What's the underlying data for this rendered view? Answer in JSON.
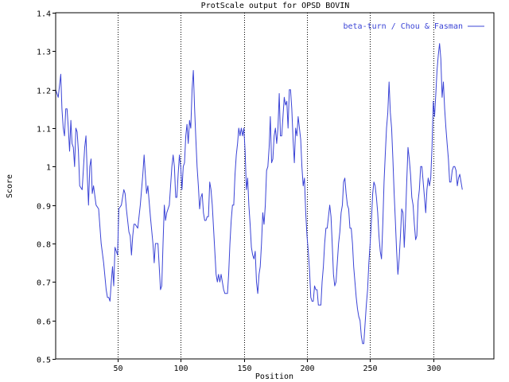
{
  "colors": {
    "series": "#3b44d6",
    "axis": "#000000",
    "grid": "#000000",
    "background": "#ffffff"
  },
  "chart_data": {
    "type": "line",
    "title": "ProtScale output for OPSD BOVIN",
    "xlabel": "Position",
    "ylabel": "Score",
    "xlim": [
      1,
      348
    ],
    "ylim": [
      0.5,
      1.4
    ],
    "x_ticks": [
      50,
      100,
      150,
      200,
      250,
      300
    ],
    "y_ticks": [
      0.5,
      0.6,
      0.7,
      0.8,
      0.9,
      1,
      1.1,
      1.2,
      1.3,
      1.4
    ],
    "y_tick_labels": [
      "0.5",
      "0.6",
      "0.7",
      "0.8",
      "0.9",
      "1",
      "1.1",
      "1.2",
      "1.3",
      "1.4"
    ],
    "grid": "vertical dotted at x ticks",
    "legend_position": "top-right",
    "series": [
      {
        "name": "beta-turn / Chou & Fasman",
        "color": "#3b44d6",
        "points": [
          [
            1,
            1.2
          ],
          [
            3,
            1.18
          ],
          [
            5,
            1.24
          ],
          [
            6,
            1.15
          ],
          [
            7,
            1.1
          ],
          [
            8,
            1.08
          ],
          [
            9,
            1.15
          ],
          [
            10,
            1.15
          ],
          [
            11,
            1.1
          ],
          [
            12,
            1.04
          ],
          [
            13,
            1.12
          ],
          [
            14,
            1.06
          ],
          [
            15,
            1.05
          ],
          [
            16,
            1.0
          ],
          [
            17,
            1.1
          ],
          [
            18,
            1.09
          ],
          [
            19,
            1.04
          ],
          [
            20,
            0.95
          ],
          [
            22,
            0.94
          ],
          [
            24,
            1.05
          ],
          [
            25,
            1.08
          ],
          [
            26,
            0.98
          ],
          [
            27,
            0.9
          ],
          [
            28,
            1.0
          ],
          [
            29,
            1.02
          ],
          [
            30,
            0.93
          ],
          [
            31,
            0.95
          ],
          [
            33,
            0.9
          ],
          [
            35,
            0.89
          ],
          [
            37,
            0.8
          ],
          [
            39,
            0.75
          ],
          [
            41,
            0.68
          ],
          [
            42,
            0.66
          ],
          [
            43,
            0.66
          ],
          [
            44,
            0.65
          ],
          [
            45,
            0.7
          ],
          [
            46,
            0.74
          ],
          [
            47,
            0.69
          ],
          [
            48,
            0.79
          ],
          [
            50,
            0.77
          ],
          [
            51,
            0.89
          ],
          [
            53,
            0.9
          ],
          [
            55,
            0.94
          ],
          [
            56,
            0.93
          ],
          [
            57,
            0.89
          ],
          [
            59,
            0.83
          ],
          [
            60,
            0.82
          ],
          [
            61,
            0.77
          ],
          [
            62,
            0.82
          ],
          [
            63,
            0.85
          ],
          [
            64,
            0.85
          ],
          [
            66,
            0.84
          ],
          [
            68,
            0.9
          ],
          [
            70,
            0.98
          ],
          [
            71,
            1.03
          ],
          [
            72,
            0.98
          ],
          [
            73,
            0.93
          ],
          [
            74,
            0.95
          ],
          [
            76,
            0.87
          ],
          [
            78,
            0.8
          ],
          [
            79,
            0.75
          ],
          [
            80,
            0.8
          ],
          [
            81,
            0.8
          ],
          [
            82,
            0.8
          ],
          [
            84,
            0.68
          ],
          [
            85,
            0.69
          ],
          [
            86,
            0.8
          ],
          [
            87,
            0.9
          ],
          [
            88,
            0.86
          ],
          [
            89,
            0.88
          ],
          [
            91,
            0.9
          ],
          [
            92,
            0.95
          ],
          [
            93,
            1.0
          ],
          [
            94,
            1.03
          ],
          [
            95,
            1.0
          ],
          [
            96,
            0.92
          ],
          [
            97,
            0.92
          ],
          [
            98,
            0.98
          ],
          [
            99,
            1.03
          ],
          [
            100,
            1.0
          ],
          [
            101,
            0.94
          ],
          [
            102,
            1.0
          ],
          [
            103,
            1.01
          ],
          [
            104,
            1.08
          ],
          [
            105,
            1.11
          ],
          [
            106,
            1.06
          ],
          [
            107,
            1.12
          ],
          [
            108,
            1.1
          ],
          [
            109,
            1.2
          ],
          [
            110,
            1.25
          ],
          [
            111,
            1.15
          ],
          [
            112,
            1.07
          ],
          [
            113,
            1.0
          ],
          [
            114,
            0.95
          ],
          [
            115,
            0.89
          ],
          [
            116,
            0.92
          ],
          [
            117,
            0.93
          ],
          [
            118,
            0.88
          ],
          [
            119,
            0.86
          ],
          [
            120,
            0.86
          ],
          [
            121,
            0.87
          ],
          [
            122,
            0.87
          ],
          [
            123,
            0.96
          ],
          [
            124,
            0.94
          ],
          [
            125,
            0.9
          ],
          [
            127,
            0.78
          ],
          [
            128,
            0.72
          ],
          [
            129,
            0.7
          ],
          [
            130,
            0.72
          ],
          [
            131,
            0.7
          ],
          [
            132,
            0.72
          ],
          [
            133,
            0.7
          ],
          [
            134,
            0.68
          ],
          [
            135,
            0.67
          ],
          [
            137,
            0.67
          ],
          [
            138,
            0.72
          ],
          [
            139,
            0.8
          ],
          [
            140,
            0.86
          ],
          [
            141,
            0.9
          ],
          [
            142,
            0.9
          ],
          [
            143,
            0.98
          ],
          [
            144,
            1.03
          ],
          [
            145,
            1.06
          ],
          [
            146,
            1.1
          ],
          [
            147,
            1.08
          ],
          [
            148,
            1.1
          ],
          [
            149,
            1.08
          ],
          [
            150,
            1.1
          ],
          [
            151,
            1.04
          ],
          [
            152,
            0.94
          ],
          [
            153,
            0.97
          ],
          [
            154,
            0.9
          ],
          [
            155,
            0.85
          ],
          [
            156,
            0.79
          ],
          [
            157,
            0.77
          ],
          [
            158,
            0.76
          ],
          [
            159,
            0.78
          ],
          [
            160,
            0.7
          ],
          [
            161,
            0.67
          ],
          [
            162,
            0.72
          ],
          [
            163,
            0.74
          ],
          [
            164,
            0.8
          ],
          [
            165,
            0.88
          ],
          [
            166,
            0.85
          ],
          [
            167,
            0.9
          ],
          [
            168,
            0.99
          ],
          [
            169,
            1.0
          ],
          [
            170,
            1.05
          ],
          [
            171,
            1.13
          ],
          [
            172,
            1.01
          ],
          [
            173,
            1.02
          ],
          [
            174,
            1.08
          ],
          [
            175,
            1.1
          ],
          [
            176,
            1.06
          ],
          [
            177,
            1.1
          ],
          [
            178,
            1.19
          ],
          [
            179,
            1.08
          ],
          [
            180,
            1.08
          ],
          [
            181,
            1.13
          ],
          [
            182,
            1.18
          ],
          [
            183,
            1.16
          ],
          [
            184,
            1.17
          ],
          [
            185,
            1.1
          ],
          [
            186,
            1.2
          ],
          [
            187,
            1.2
          ],
          [
            188,
            1.15
          ],
          [
            189,
            1.07
          ],
          [
            190,
            1.01
          ],
          [
            191,
            1.1
          ],
          [
            192,
            1.08
          ],
          [
            193,
            1.13
          ],
          [
            194,
            1.1
          ],
          [
            195,
            1.07
          ],
          [
            196,
            1.0
          ],
          [
            197,
            0.95
          ],
          [
            198,
            0.97
          ],
          [
            199,
            0.88
          ],
          [
            200,
            0.82
          ],
          [
            201,
            0.78
          ],
          [
            202,
            0.73
          ],
          [
            203,
            0.66
          ],
          [
            204,
            0.65
          ],
          [
            205,
            0.65
          ],
          [
            206,
            0.69
          ],
          [
            207,
            0.68
          ],
          [
            208,
            0.68
          ],
          [
            209,
            0.64
          ],
          [
            210,
            0.64
          ],
          [
            211,
            0.64
          ],
          [
            212,
            0.7
          ],
          [
            213,
            0.74
          ],
          [
            214,
            0.8
          ],
          [
            215,
            0.84
          ],
          [
            216,
            0.84
          ],
          [
            217,
            0.87
          ],
          [
            218,
            0.9
          ],
          [
            219,
            0.87
          ],
          [
            220,
            0.8
          ],
          [
            221,
            0.72
          ],
          [
            222,
            0.69
          ],
          [
            223,
            0.7
          ],
          [
            224,
            0.75
          ],
          [
            225,
            0.8
          ],
          [
            226,
            0.83
          ],
          [
            227,
            0.88
          ],
          [
            228,
            0.9
          ],
          [
            229,
            0.96
          ],
          [
            230,
            0.97
          ],
          [
            231,
            0.93
          ],
          [
            232,
            0.9
          ],
          [
            233,
            0.89
          ],
          [
            234,
            0.84
          ],
          [
            235,
            0.84
          ],
          [
            236,
            0.8
          ],
          [
            237,
            0.74
          ],
          [
            238,
            0.7
          ],
          [
            239,
            0.66
          ],
          [
            240,
            0.63
          ],
          [
            241,
            0.61
          ],
          [
            242,
            0.6
          ],
          [
            243,
            0.56
          ],
          [
            244,
            0.54
          ],
          [
            245,
            0.54
          ],
          [
            246,
            0.59
          ],
          [
            247,
            0.64
          ],
          [
            248,
            0.68
          ],
          [
            249,
            0.75
          ],
          [
            250,
            0.8
          ],
          [
            251,
            0.86
          ],
          [
            252,
            0.93
          ],
          [
            253,
            0.96
          ],
          [
            254,
            0.95
          ],
          [
            255,
            0.92
          ],
          [
            256,
            0.88
          ],
          [
            257,
            0.82
          ],
          [
            258,
            0.78
          ],
          [
            259,
            0.76
          ],
          [
            260,
            0.85
          ],
          [
            261,
            0.96
          ],
          [
            262,
            1.03
          ],
          [
            263,
            1.1
          ],
          [
            264,
            1.14
          ],
          [
            265,
            1.22
          ],
          [
            266,
            1.14
          ],
          [
            267,
            1.1
          ],
          [
            268,
            1.02
          ],
          [
            269,
            0.93
          ],
          [
            270,
            0.86
          ],
          [
            271,
            0.78
          ],
          [
            272,
            0.72
          ],
          [
            273,
            0.76
          ],
          [
            274,
            0.82
          ],
          [
            275,
            0.89
          ],
          [
            276,
            0.88
          ],
          [
            277,
            0.79
          ],
          [
            278,
            0.86
          ],
          [
            279,
            0.96
          ],
          [
            280,
            1.05
          ],
          [
            281,
            1.02
          ],
          [
            282,
            0.98
          ],
          [
            283,
            0.92
          ],
          [
            284,
            0.9
          ],
          [
            285,
            0.85
          ],
          [
            286,
            0.81
          ],
          [
            287,
            0.82
          ],
          [
            288,
            0.91
          ],
          [
            289,
            0.94
          ],
          [
            290,
            1.0
          ],
          [
            291,
            1.0
          ],
          [
            292,
            0.96
          ],
          [
            293,
            0.92
          ],
          [
            294,
            0.88
          ],
          [
            295,
            0.94
          ],
          [
            296,
            0.97
          ],
          [
            297,
            0.95
          ],
          [
            298,
            0.97
          ],
          [
            299,
            1.05
          ],
          [
            300,
            1.17
          ],
          [
            301,
            1.13
          ],
          [
            302,
            1.19
          ],
          [
            303,
            1.25
          ],
          [
            304,
            1.29
          ],
          [
            305,
            1.32
          ],
          [
            306,
            1.28
          ],
          [
            307,
            1.18
          ],
          [
            308,
            1.22
          ],
          [
            309,
            1.15
          ],
          [
            310,
            1.1
          ],
          [
            311,
            1.06
          ],
          [
            312,
            1.02
          ],
          [
            313,
            0.96
          ],
          [
            314,
            0.96
          ],
          [
            315,
            0.99
          ],
          [
            316,
            1.0
          ],
          [
            317,
            1.0
          ],
          [
            318,
            0.99
          ],
          [
            319,
            0.95
          ],
          [
            320,
            0.97
          ],
          [
            321,
            0.98
          ],
          [
            322,
            0.96
          ],
          [
            323,
            0.94
          ]
        ]
      }
    ]
  }
}
